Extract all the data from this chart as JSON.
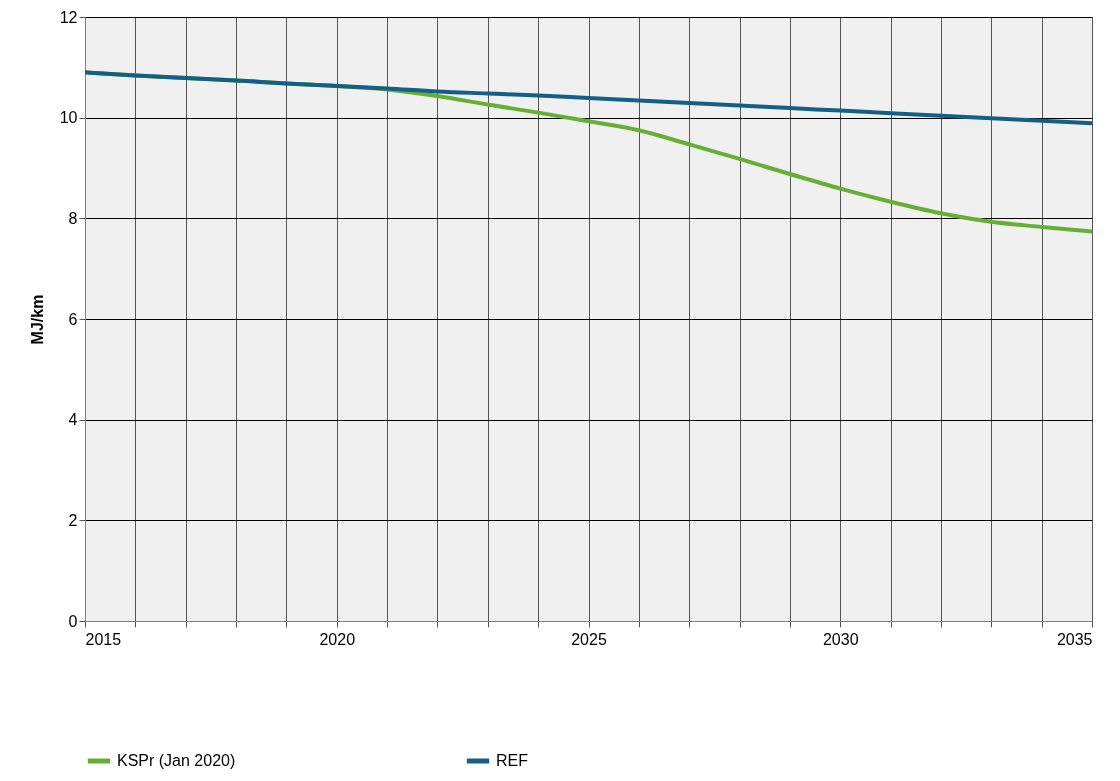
{
  "chart_data": {
    "type": "line",
    "ylabel": "MJ/km",
    "x": [
      2015,
      2016,
      2017,
      2018,
      2019,
      2020,
      2021,
      2022,
      2023,
      2024,
      2025,
      2026,
      2027,
      2028,
      2029,
      2030,
      2031,
      2032,
      2033,
      2034,
      2035
    ],
    "series": [
      {
        "name": "KSPr (Jan 2020)",
        "color": "#65b032",
        "values": [
          10.9,
          10.84,
          10.79,
          10.74,
          10.68,
          10.63,
          10.56,
          10.43,
          10.26,
          10.1,
          9.93,
          9.75,
          9.47,
          9.18,
          8.88,
          8.59,
          8.33,
          8.1,
          7.93,
          7.83,
          7.74
        ]
      },
      {
        "name": "REF",
        "color": "#135f85",
        "values": [
          10.9,
          10.84,
          10.79,
          10.74,
          10.68,
          10.63,
          10.58,
          10.52,
          10.48,
          10.44,
          10.39,
          10.34,
          10.29,
          10.24,
          10.19,
          10.14,
          10.09,
          10.04,
          9.99,
          9.94,
          9.89
        ]
      }
    ],
    "xlim": [
      2015,
      2035
    ],
    "xticks": [
      2015,
      {
        "value": 2016,
        "label": null
      },
      {
        "value": 2017,
        "label": null
      },
      {
        "value": 2018,
        "label": null
      },
      {
        "value": 2019,
        "label": null
      },
      2020,
      {
        "value": 2021,
        "label": null
      },
      {
        "value": 2022,
        "label": null
      },
      {
        "value": 2023,
        "label": null
      },
      {
        "value": 2024,
        "label": null
      },
      2025,
      {
        "value": 2026,
        "label": null
      },
      {
        "value": 2027,
        "label": null
      },
      {
        "value": 2028,
        "label": null
      },
      {
        "value": 2029,
        "label": null
      },
      2030,
      {
        "value": 2031,
        "label": null
      },
      {
        "value": 2032,
        "label": null
      },
      {
        "value": 2033,
        "label": null
      },
      {
        "value": 2034,
        "label": null
      },
      2035
    ],
    "ylim": [
      0,
      12
    ],
    "yticks": [
      0,
      2,
      4,
      6,
      8,
      10,
      12
    ],
    "grid": true,
    "legend": "bottom",
    "marker": "none",
    "line_style": "solid"
  }
}
